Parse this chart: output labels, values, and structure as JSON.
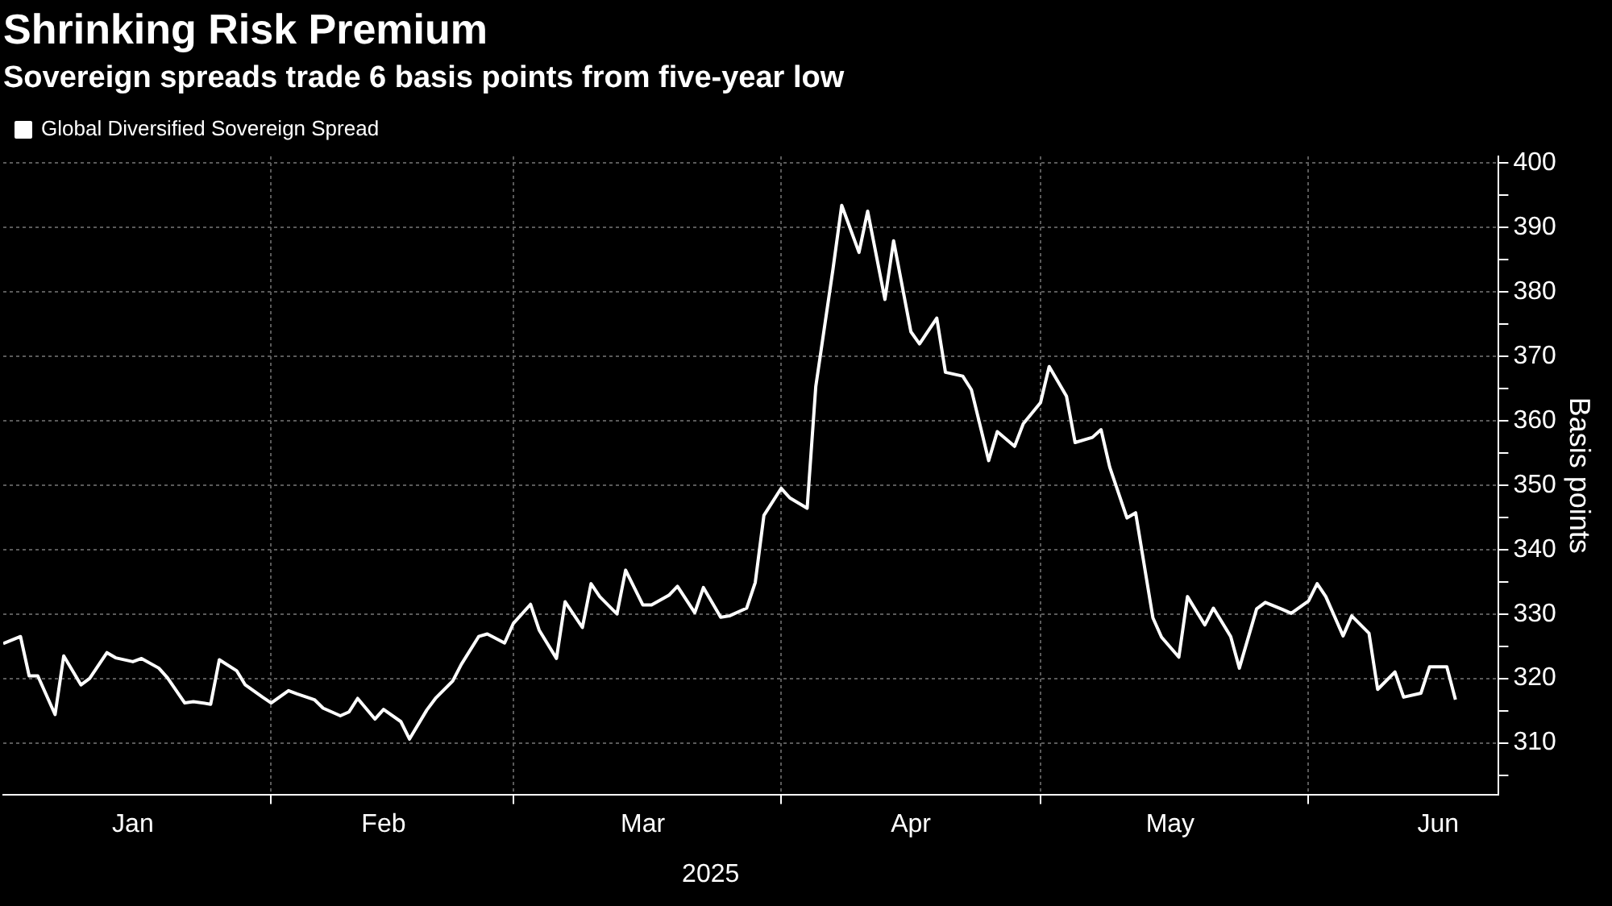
{
  "chart_data": {
    "type": "line",
    "title": "Shrinking Risk Premium",
    "subtitle": "Sovereign spreads trade 6 basis points from five-year low",
    "ylabel": "Basis points",
    "annotations": [
      "2025"
    ],
    "x": [
      "2025-01-01",
      "2025-01-03",
      "2025-01-04",
      "2025-01-05",
      "2025-01-07",
      "2025-01-08",
      "2025-01-10",
      "2025-01-11",
      "2025-01-13",
      "2025-01-14",
      "2025-01-16",
      "2025-01-17",
      "2025-01-19",
      "2025-01-20",
      "2025-01-22",
      "2025-01-23",
      "2025-01-25",
      "2025-01-26",
      "2025-01-28",
      "2025-01-29",
      "2025-01-31",
      "2025-02-01",
      "2025-02-03",
      "2025-02-04",
      "2025-02-06",
      "2025-02-07",
      "2025-02-09",
      "2025-02-10",
      "2025-02-11",
      "2025-02-13",
      "2025-02-14",
      "2025-02-16",
      "2025-02-17",
      "2025-02-19",
      "2025-02-20",
      "2025-02-22",
      "2025-02-23",
      "2025-02-25",
      "2025-02-26",
      "2025-02-28",
      "2025-03-01",
      "2025-03-03",
      "2025-03-04",
      "2025-03-06",
      "2025-03-07",
      "2025-03-09",
      "2025-03-10",
      "2025-03-11",
      "2025-03-13",
      "2025-03-14",
      "2025-03-16",
      "2025-03-17",
      "2025-03-19",
      "2025-03-20",
      "2025-03-22",
      "2025-03-23",
      "2025-03-25",
      "2025-03-26",
      "2025-03-28",
      "2025-03-29",
      "2025-03-30",
      "2025-04-01",
      "2025-04-02",
      "2025-04-04",
      "2025-04-05",
      "2025-04-07",
      "2025-04-08",
      "2025-04-10",
      "2025-04-11",
      "2025-04-13",
      "2025-04-14",
      "2025-04-16",
      "2025-04-17",
      "2025-04-19",
      "2025-04-20",
      "2025-04-22",
      "2025-04-23",
      "2025-04-25",
      "2025-04-26",
      "2025-04-28",
      "2025-04-29",
      "2025-05-01",
      "2025-05-02",
      "2025-05-04",
      "2025-05-05",
      "2025-05-07",
      "2025-05-08",
      "2025-05-09",
      "2025-05-11",
      "2025-05-12",
      "2025-05-14",
      "2025-05-15",
      "2025-05-17",
      "2025-05-18",
      "2025-05-20",
      "2025-05-21",
      "2025-05-23",
      "2025-05-24",
      "2025-05-26",
      "2025-05-27",
      "2025-05-29",
      "2025-05-30",
      "2025-06-01",
      "2025-06-02",
      "2025-06-03",
      "2025-06-05",
      "2025-06-06",
      "2025-06-08",
      "2025-06-09",
      "2025-06-11",
      "2025-06-12",
      "2025-06-14",
      "2025-06-15",
      "2025-06-17",
      "2025-06-18"
    ],
    "series": [
      {
        "name": "Global Diversified Sovereign Spread",
        "color": "#ffffff",
        "values": [
          325.4,
          326.5,
          320.4,
          320.4,
          314.4,
          323.5,
          319.0,
          320.0,
          324.0,
          323.2,
          322.6,
          323.1,
          321.6,
          320.1,
          316.2,
          316.4,
          316.0,
          322.9,
          321.2,
          319.0,
          317.1,
          316.2,
          318.1,
          317.6,
          316.7,
          315.4,
          314.2,
          314.8,
          316.9,
          313.7,
          315.2,
          313.3,
          310.6,
          315.1,
          316.9,
          319.6,
          322.2,
          326.5,
          326.9,
          325.5,
          328.5,
          331.5,
          327.5,
          323.1,
          331.9,
          327.9,
          334.7,
          332.7,
          330.0,
          336.8,
          331.4,
          331.4,
          332.9,
          334.3,
          330.2,
          334.1,
          329.5,
          329.7,
          330.9,
          334.9,
          345.3,
          349.5,
          348.0,
          346.4,
          365.3,
          383.6,
          393.4,
          386.1,
          392.5,
          378.8,
          387.9,
          373.8,
          371.9,
          375.9,
          367.5,
          366.9,
          364.8,
          353.8,
          358.3,
          356.0,
          359.5,
          362.8,
          368.4,
          363.8,
          356.6,
          357.4,
          358.6,
          352.8,
          344.9,
          345.7,
          329.4,
          326.4,
          323.3,
          332.7,
          328.3,
          330.9,
          326.5,
          321.6,
          330.8,
          331.8,
          330.7,
          330.1,
          332.0,
          334.7,
          332.7,
          326.6,
          329.7,
          327.0,
          318.3,
          321.0,
          317.1,
          317.7,
          321.8,
          321.8,
          316.7
        ]
      }
    ],
    "xlim": [
      "2025-01-01",
      "2025-06-23"
    ],
    "xticks": [
      {
        "value": "2025-01-16",
        "label": "Jan"
      },
      {
        "value": "2025-02-01",
        "label": null
      },
      {
        "value": "2025-02-14",
        "label": "Feb"
      },
      {
        "value": "2025-03-01",
        "label": null
      },
      {
        "value": "2025-03-16",
        "label": "Mar"
      },
      {
        "value": "2025-04-01",
        "label": null
      },
      {
        "value": "2025-04-16",
        "label": "Apr"
      },
      {
        "value": "2025-05-01",
        "label": null
      },
      {
        "value": "2025-05-16",
        "label": "May"
      },
      {
        "value": "2025-06-01",
        "label": null
      },
      {
        "value": "2025-06-16",
        "label": "Jun"
      }
    ],
    "ylim": [
      302,
      401
    ],
    "yticks": [
      {
        "value": 305,
        "label": null
      },
      310,
      {
        "value": 315,
        "label": null
      },
      320,
      {
        "value": 325,
        "label": null
      },
      330,
      {
        "value": 335,
        "label": null
      },
      340,
      {
        "value": 345,
        "label": null
      },
      350,
      {
        "value": 355,
        "label": null
      },
      360,
      {
        "value": 365,
        "label": null
      },
      370,
      {
        "value": 375,
        "label": null
      },
      380,
      {
        "value": 385,
        "label": null
      },
      390,
      {
        "value": 395,
        "label": null
      },
      400
    ],
    "grid": true,
    "legend": "top left",
    "marker": "none",
    "line_style": "solid"
  }
}
